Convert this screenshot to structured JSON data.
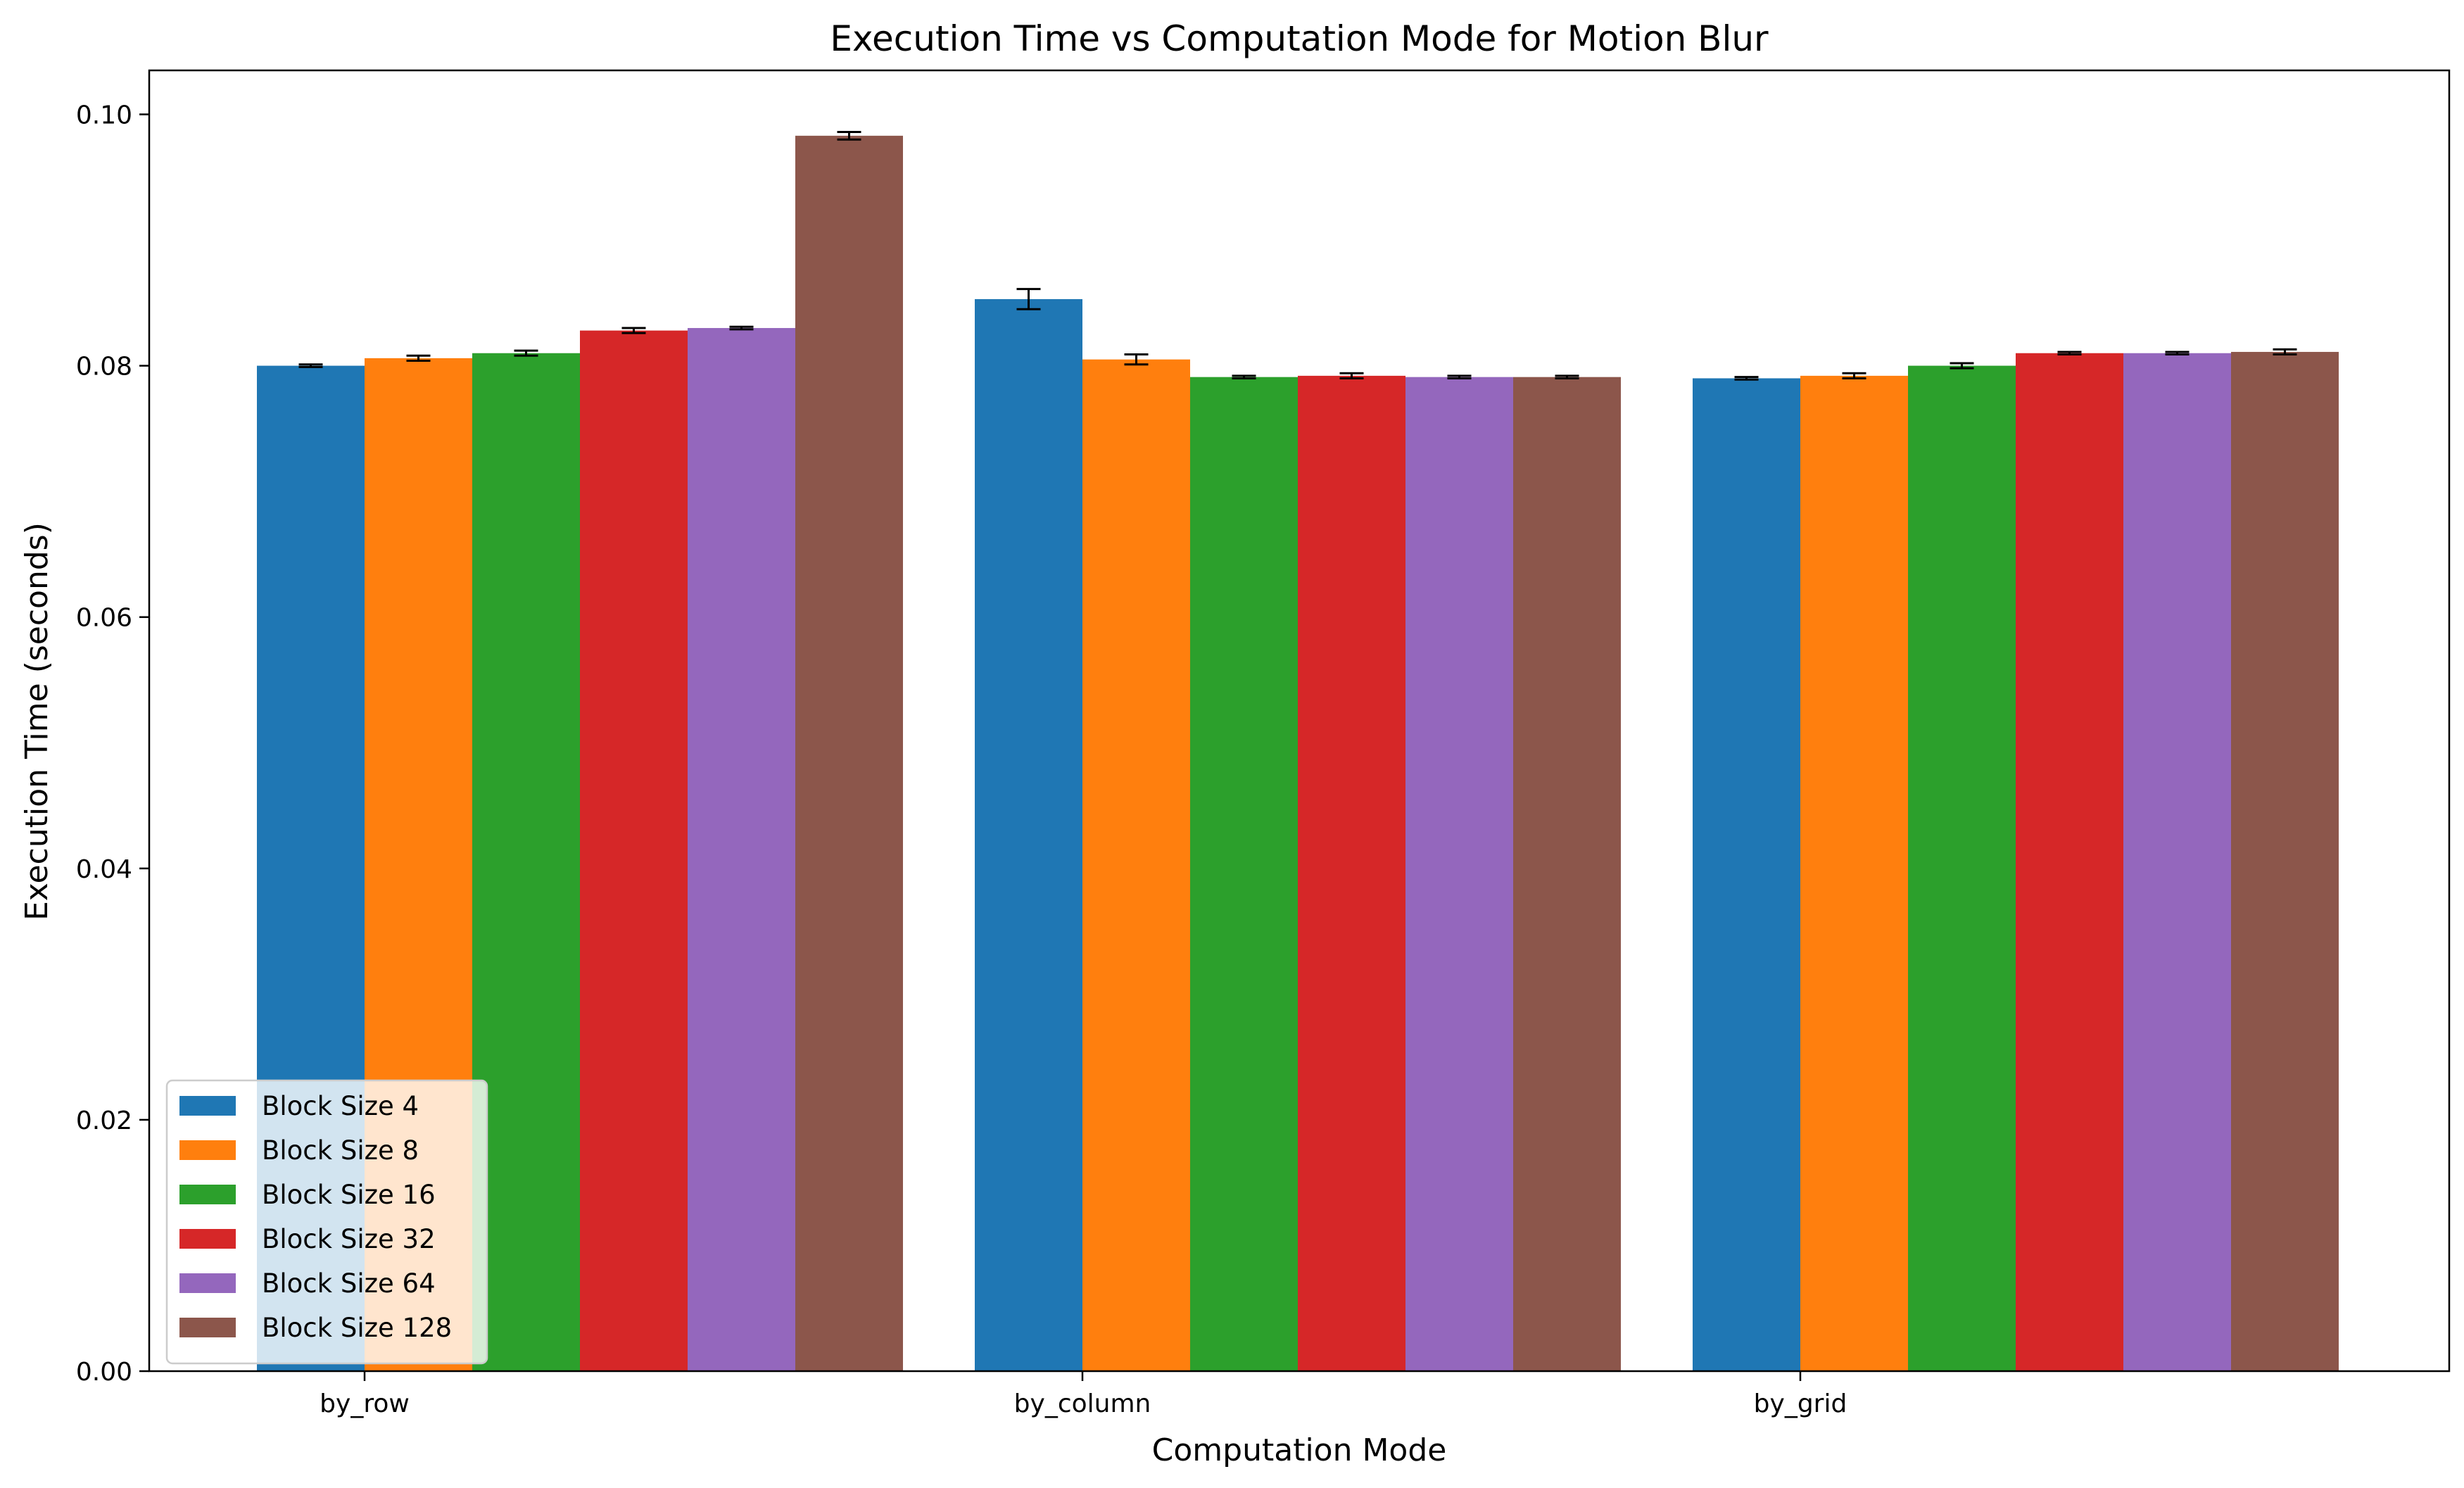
{
  "chart_data": {
    "type": "bar",
    "title": "Execution Time vs Computation Mode for Motion Blur",
    "xlabel": "Computation Mode",
    "ylabel": "Execution Time (seconds)",
    "categories": [
      "by_row",
      "by_column",
      "by_grid"
    ],
    "ylim": [
      0,
      0.1035
    ],
    "yticks": [
      0.0,
      0.02,
      0.04,
      0.06,
      0.08,
      0.1
    ],
    "ytick_labels": [
      "0.00",
      "0.02",
      "0.04",
      "0.06",
      "0.08",
      "0.10"
    ],
    "grid": false,
    "legend_position": "lower-left",
    "error_bars": true,
    "series": [
      {
        "name": "Block Size 4",
        "color": "#1f77b4",
        "values": [
          0.08,
          0.0853,
          0.079
        ],
        "errors": [
          0.0001,
          0.0008,
          0.0001
        ]
      },
      {
        "name": "Block Size 8",
        "color": "#ff7f0e",
        "values": [
          0.0806,
          0.0805,
          0.0792
        ],
        "errors": [
          0.0002,
          0.0004,
          0.0002
        ]
      },
      {
        "name": "Block Size 16",
        "color": "#2ca02c",
        "values": [
          0.081,
          0.0791,
          0.08
        ],
        "errors": [
          0.0002,
          0.0001,
          0.0002
        ]
      },
      {
        "name": "Block Size 32",
        "color": "#d62728",
        "values": [
          0.0828,
          0.0792,
          0.081
        ],
        "errors": [
          0.0002,
          0.0002,
          0.0001
        ]
      },
      {
        "name": "Block Size 64",
        "color": "#9467bd",
        "values": [
          0.083,
          0.0791,
          0.081
        ],
        "errors": [
          0.0001,
          0.0001,
          0.0001
        ]
      },
      {
        "name": "Block Size 128",
        "color": "#8c564b",
        "values": [
          0.0983,
          0.0791,
          0.0811
        ],
        "errors": [
          0.0003,
          0.0001,
          0.0002
        ]
      }
    ]
  }
}
